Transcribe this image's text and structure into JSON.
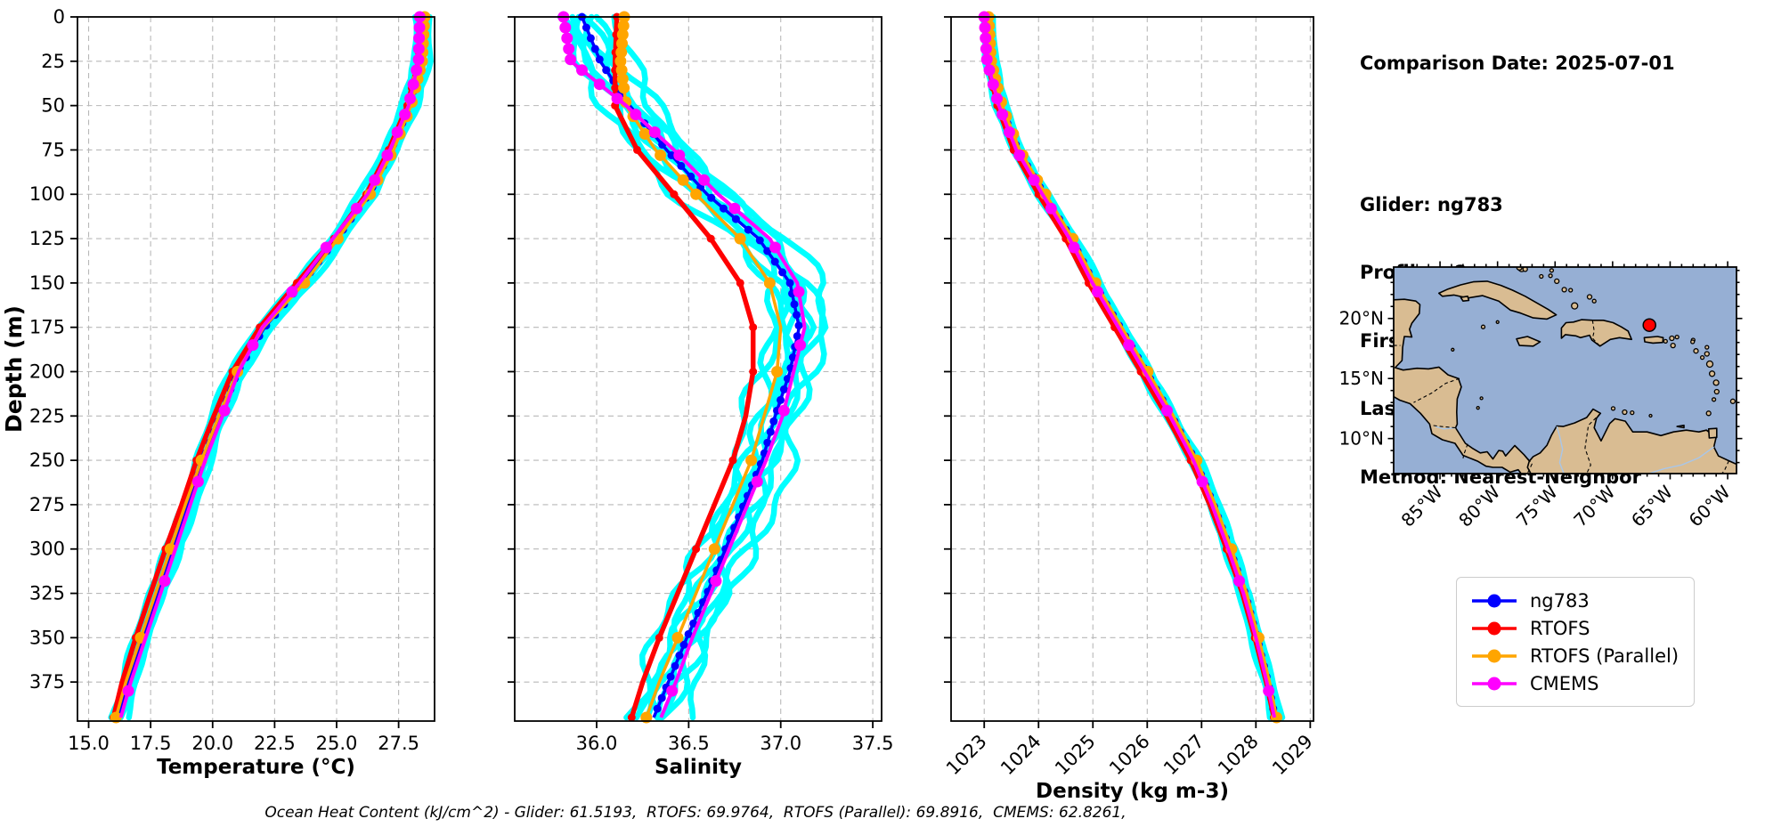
{
  "info_panel": {
    "comparison_date": "Comparison Date: 2025-07-01",
    "glider": "Glider: ng783",
    "profiles": "Profiles: 8",
    "first": "First: 2025-07-01 01:21:45",
    "last": "Last: 2025-07-01 21:30:36",
    "method": "Method: Nearest-Neighbor"
  },
  "caption": "Ocean Heat Content (kJ/cm^2) - Glider: 61.5193,  RTOFS: 69.9764,  RTOFS (Parallel): 69.8916,  CMEMS: 62.8261,",
  "legend": {
    "items": [
      {
        "label": "ng783",
        "color": "#0000ff"
      },
      {
        "label": "RTOFS",
        "color": "#ff0000"
      },
      {
        "label": "RTOFS (Parallel)",
        "color": "#ffa500"
      },
      {
        "label": "CMEMS",
        "color": "#ff00ff"
      }
    ]
  },
  "colors": {
    "glider_profiles": "#00ffff",
    "ng783": "#0000ff",
    "rtofs": "#ff0000",
    "rtofs_parallel": "#ffa500",
    "cmems": "#ff00ff",
    "grid": "#b8b8b8"
  },
  "map": {
    "ocean_color": "#96afd4",
    "land_color": "#d9bc92",
    "marker_color": "#ff0000",
    "marker_lon": -66.8,
    "marker_lat": 19.45,
    "lat_labels": [
      "20°N",
      "15°N",
      "10°N"
    ],
    "lat_values": [
      20,
      15,
      10
    ],
    "lon_labels": [
      "85°W",
      "80°W",
      "75°W",
      "70°W",
      "65°W",
      "60°W"
    ],
    "lon_values": [
      -85,
      -80,
      -75,
      -70,
      -65,
      -60
    ]
  },
  "chart_data": [
    {
      "type": "line",
      "xlabel": "Temperature (°C)",
      "ylabel": "Depth (m)",
      "xlim": [
        14.55,
        28.95
      ],
      "ylim": [
        0,
        397
      ],
      "xtick_values": [
        15.0,
        17.5,
        20.0,
        22.5,
        25.0,
        27.5
      ],
      "xtick_labels": [
        "15.0",
        "17.5",
        "20.0",
        "22.5",
        "25.0",
        "27.5"
      ],
      "ytick_values": [
        0,
        25,
        50,
        75,
        100,
        125,
        150,
        175,
        200,
        225,
        250,
        275,
        300,
        325,
        350,
        375
      ],
      "ytick_labels": [
        "0",
        "25",
        "50",
        "75",
        "100",
        "125",
        "150",
        "175",
        "200",
        "225",
        "250",
        "275",
        "300",
        "325",
        "350",
        "375"
      ],
      "depths": [
        0,
        25,
        50,
        75,
        100,
        125,
        150,
        175,
        200,
        225,
        250,
        275,
        300,
        325,
        350,
        375,
        395
      ],
      "envelope": {
        "name": "glider profiles",
        "profiles": 8,
        "color": "#00ffff",
        "spread": 0.28
      },
      "series": [
        {
          "name": "ng783",
          "color": "#0000ff",
          "values": [
            28.4,
            28.38,
            27.95,
            27.2,
            26.3,
            25.0,
            23.6,
            22.1,
            21.0,
            20.3,
            19.6,
            19.0,
            18.4,
            17.8,
            17.2,
            16.6,
            16.2
          ]
        },
        {
          "name": "RTOFS",
          "color": "#ff0000",
          "values": [
            28.4,
            28.3,
            27.85,
            27.1,
            26.2,
            24.9,
            23.4,
            21.9,
            20.8,
            20.05,
            19.35,
            18.75,
            18.1,
            17.5,
            16.9,
            16.35,
            16.0
          ]
        },
        {
          "name": "RTOFS (Parallel)",
          "color": "#ffa500",
          "values": [
            28.55,
            28.45,
            28.0,
            27.3,
            26.35,
            25.05,
            23.7,
            22.05,
            21.0,
            20.25,
            19.55,
            18.9,
            18.3,
            17.7,
            17.1,
            16.5,
            16.1
          ]
        },
        {
          "name": "CMEMS",
          "color": "#ff00ff",
          "values": [
            28.35,
            28.3,
            27.9,
            27.15,
            26.25,
            24.85,
            23.5,
            22.0,
            21.05,
            20.4,
            19.7,
            19.1,
            18.5,
            17.9,
            17.3,
            16.7,
            16.3
          ]
        }
      ]
    },
    {
      "type": "line",
      "xlabel": "Salinity",
      "ylabel": "",
      "xlim": [
        35.555,
        37.548
      ],
      "ylim": [
        0,
        397
      ],
      "xtick_values": [
        36.0,
        36.5,
        37.0,
        37.5
      ],
      "xtick_labels": [
        "36.0",
        "36.5",
        "37.0",
        "37.5"
      ],
      "ytick_values": [
        0,
        25,
        50,
        75,
        100,
        125,
        150,
        175,
        200,
        225,
        250,
        275,
        300,
        325,
        350,
        375
      ],
      "ytick_labels": [],
      "depths": [
        0,
        25,
        50,
        75,
        100,
        125,
        150,
        175,
        200,
        225,
        250,
        275,
        300,
        325,
        350,
        375,
        395
      ],
      "envelope": {
        "name": "glider profiles",
        "profiles": 8,
        "color": "#00ffff",
        "spread": 0.14
      },
      "series": [
        {
          "name": "ng783",
          "color": "#0000ff",
          "values": [
            35.92,
            36.02,
            36.18,
            36.38,
            36.6,
            36.88,
            37.05,
            37.1,
            37.05,
            36.97,
            36.9,
            36.8,
            36.7,
            36.6,
            36.49,
            36.39,
            36.31
          ]
        },
        {
          "name": "RTOFS",
          "color": "#ff0000",
          "values": [
            36.11,
            36.1,
            36.1,
            36.22,
            36.42,
            36.62,
            36.78,
            36.85,
            36.85,
            36.81,
            36.74,
            36.64,
            36.54,
            36.44,
            36.34,
            36.25,
            36.19
          ]
        },
        {
          "name": "RTOFS (Parallel)",
          "color": "#ffa500",
          "values": [
            36.15,
            36.13,
            36.16,
            36.32,
            36.54,
            36.78,
            36.94,
            37.0,
            36.98,
            36.91,
            36.84,
            36.74,
            36.64,
            36.54,
            36.44,
            36.34,
            36.27
          ]
        },
        {
          "name": "CMEMS",
          "color": "#ff00ff",
          "values": [
            35.82,
            35.86,
            36.16,
            36.42,
            36.66,
            36.94,
            37.09,
            37.13,
            37.07,
            37.01,
            36.92,
            36.82,
            36.72,
            36.62,
            36.52,
            36.43,
            36.35
          ]
        }
      ]
    },
    {
      "type": "line",
      "xlabel": "Density (kg m-3)",
      "ylabel": "",
      "xlim": [
        1022.39,
        1029.06
      ],
      "ylim": [
        0,
        397
      ],
      "xtick_values": [
        1023,
        1024,
        1025,
        1026,
        1027,
        1028,
        1029
      ],
      "xtick_labels": [
        "1023",
        "1024",
        "1025",
        "1026",
        "1027",
        "1028",
        "1029"
      ],
      "ytick_values": [
        0,
        25,
        50,
        75,
        100,
        125,
        150,
        175,
        200,
        225,
        250,
        275,
        300,
        325,
        350,
        375
      ],
      "ytick_labels": [],
      "depths": [
        0,
        25,
        50,
        75,
        100,
        125,
        150,
        175,
        200,
        225,
        250,
        275,
        300,
        325,
        350,
        375,
        395
      ],
      "envelope": {
        "name": "glider profiles",
        "profiles": 8,
        "color": "#00ffff",
        "spread": 0.09
      },
      "series": [
        {
          "name": "ng783",
          "color": "#0000ff",
          "values": [
            1023.05,
            1023.1,
            1023.3,
            1023.62,
            1024.1,
            1024.6,
            1025.02,
            1025.5,
            1025.98,
            1026.45,
            1026.88,
            1027.22,
            1027.52,
            1027.8,
            1028.02,
            1028.22,
            1028.35
          ]
        },
        {
          "name": "RTOFS",
          "color": "#ff0000",
          "values": [
            1023.02,
            1023.06,
            1023.24,
            1023.54,
            1024.0,
            1024.5,
            1024.92,
            1025.4,
            1025.88,
            1026.36,
            1026.8,
            1027.15,
            1027.46,
            1027.75,
            1027.98,
            1028.19,
            1028.33
          ]
        },
        {
          "name": "RTOFS (Parallel)",
          "color": "#ffa500",
          "values": [
            1023.08,
            1023.13,
            1023.33,
            1023.65,
            1024.13,
            1024.63,
            1025.05,
            1025.53,
            1026.01,
            1026.48,
            1026.91,
            1027.25,
            1027.55,
            1027.83,
            1028.05,
            1028.25,
            1028.38
          ]
        },
        {
          "name": "CMEMS",
          "color": "#ff00ff",
          "values": [
            1023.0,
            1023.05,
            1023.27,
            1023.59,
            1024.07,
            1024.57,
            1024.99,
            1025.47,
            1025.95,
            1026.42,
            1026.85,
            1027.19,
            1027.49,
            1027.77,
            1028.0,
            1028.2,
            1028.34
          ]
        }
      ]
    }
  ]
}
